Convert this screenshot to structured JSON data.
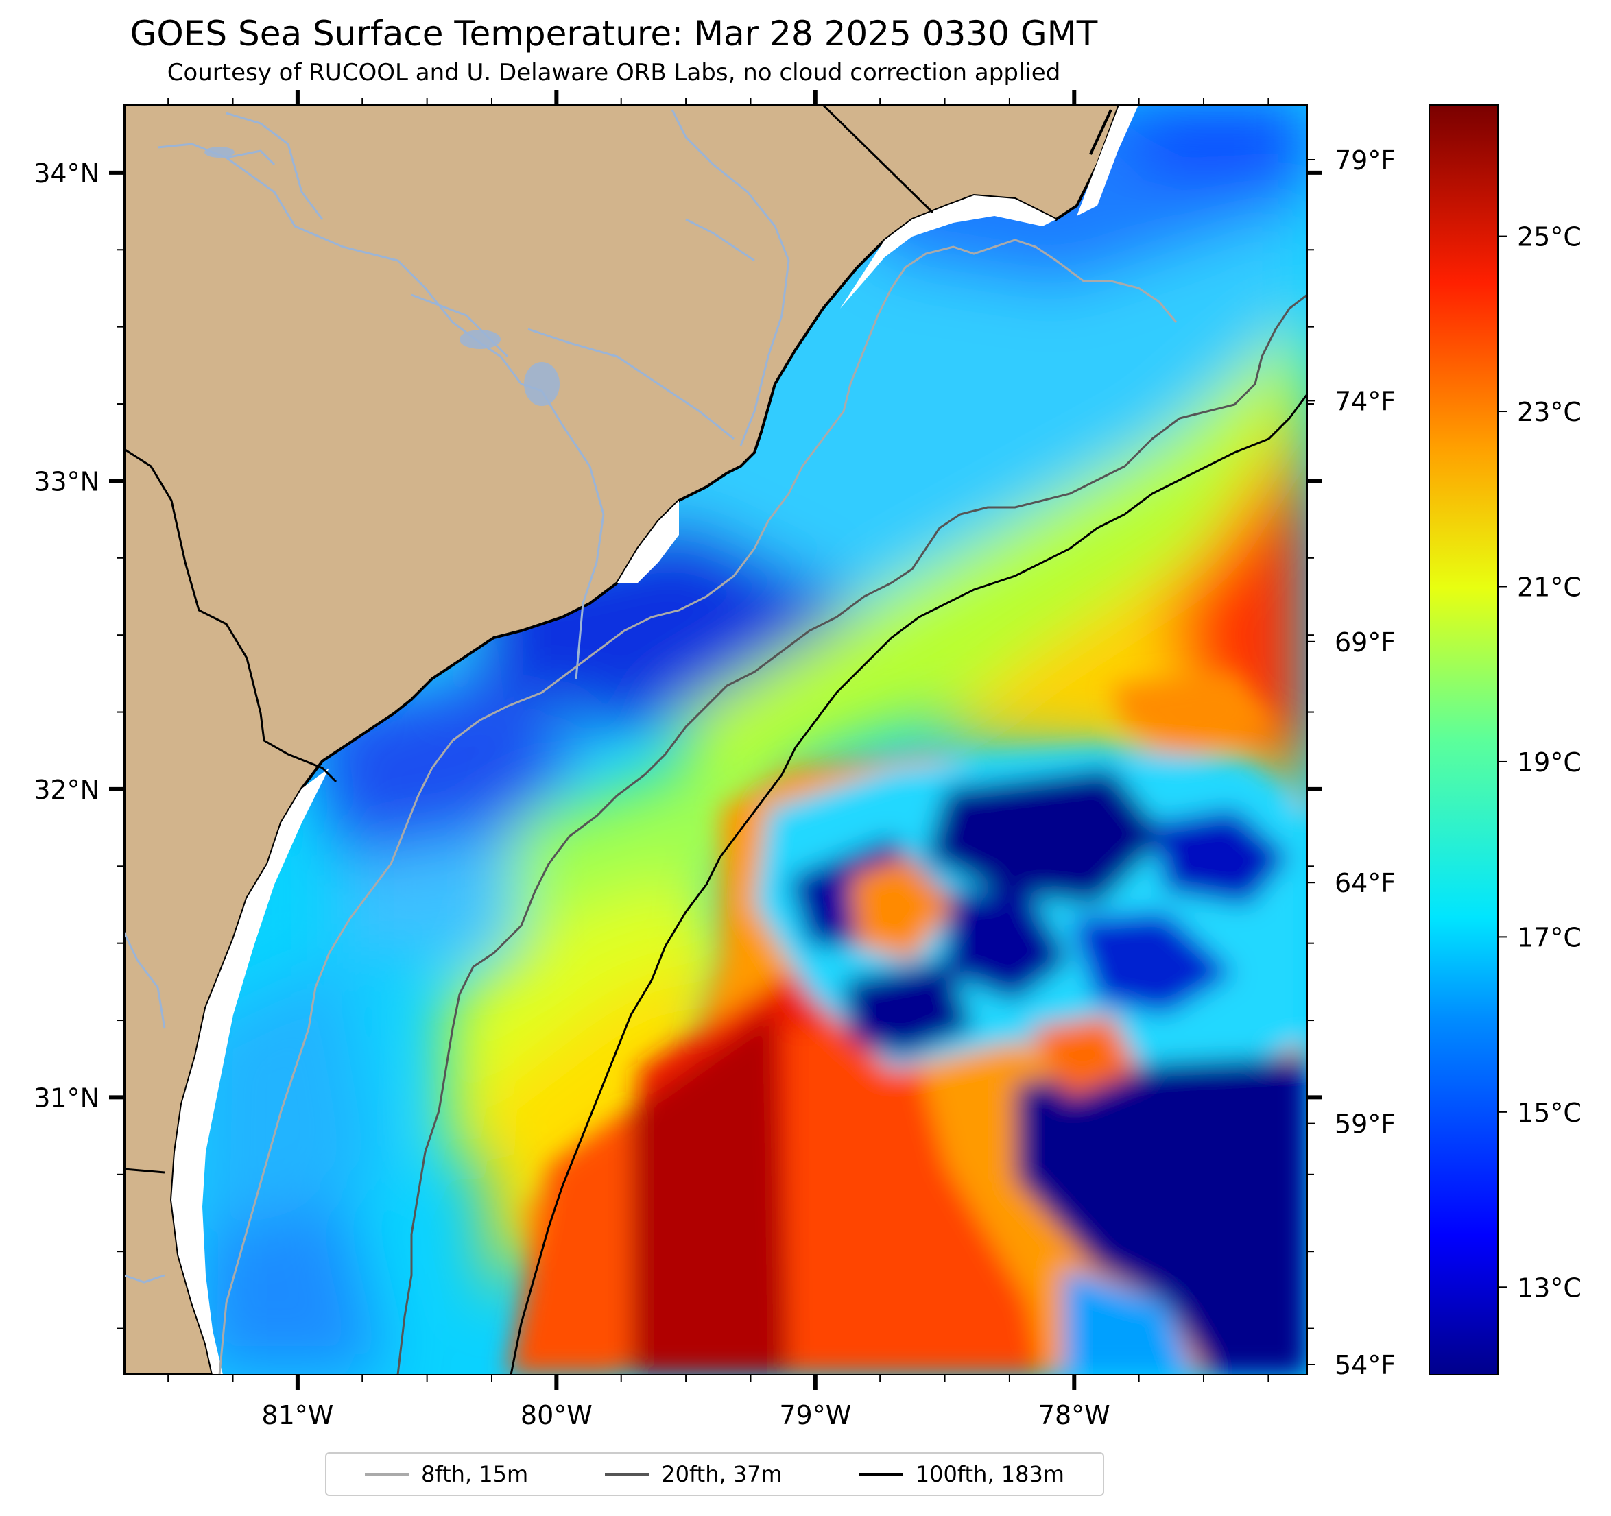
{
  "title": "GOES Sea Surface Temperature: Mar 28 2025 0330 GMT",
  "subtitle": "Courtesy of RUCOOL and U. Delaware ORB Labs, no cloud correction applied",
  "map": {
    "lon_range": [
      -81.67,
      -77.1
    ],
    "lat_range": [
      30.1,
      34.22
    ],
    "lon_ticks": [
      "81°W",
      "80°W",
      "79°W",
      "78°W"
    ],
    "lat_ticks": [
      "34°N",
      "33°N",
      "32°N",
      "31°N"
    ],
    "right_axis_ticks": [
      "79°F",
      "74°F",
      "69°F",
      "64°F",
      "59°F",
      "54°F"
    ]
  },
  "colorbar": {
    "colormap": "jet",
    "range_c": [
      12,
      26.5
    ],
    "ticks": [
      "25°C",
      "23°C",
      "21°C",
      "19°C",
      "17°C",
      "15°C",
      "13°C"
    ]
  },
  "legend": [
    {
      "label": "8fth, 15m",
      "color": "#aaaaaa"
    },
    {
      "label": "20fth, 37m",
      "color": "#555555"
    },
    {
      "label": "100fth, 183m",
      "color": "#000000"
    }
  ],
  "colors": {
    "land": "#d2b48c",
    "river": "#9bb4d6",
    "coast": "#000000",
    "noData": "#ffffff"
  }
}
